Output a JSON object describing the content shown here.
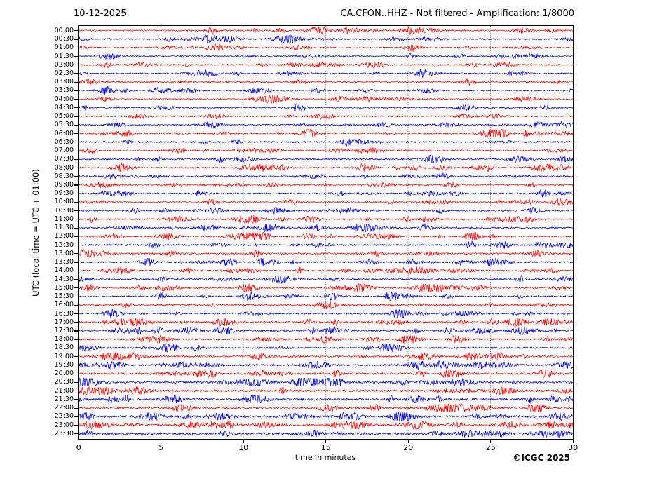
{
  "header": {
    "date": "10-12-2025",
    "station_title": "CA.CFON..HHZ - Not filtered - Amplification: 1/8000"
  },
  "footer": {
    "xlabel": "time in minutes",
    "copyright": "©ICGC 2025"
  },
  "chart_data": {
    "type": "line",
    "subtype": "helicorder-seismogram",
    "title": "CA.CFON..HHZ - Not filtered - Amplification: 1/8000",
    "date": "10-12-2025",
    "station": "CA.CFON..HHZ",
    "filter": "Not filtered",
    "amplification": "1/8000",
    "xlabel": "time in minutes",
    "ylabel": "UTC (local time = UTC + 01:00)",
    "xlim": [
      0,
      30
    ],
    "xticks": [
      0,
      5,
      10,
      15,
      20,
      25,
      30
    ],
    "gridline_xticks": [
      5,
      10,
      15,
      20,
      25
    ],
    "grid_style": "vertical dotted gray lines at 5-minute intervals",
    "minutes_per_row": 30,
    "legend_position": "none",
    "trace_colors": {
      "on_the_hour": "#ff0000",
      "on_the_half_hour": "#0000dd"
    },
    "noise_seed": 20251210,
    "description": "24-hour helicorder: 48 alternating red/blue 30-minute traces of continuous background seismic noise with small spindle-shaped bursts; amplitude increases during evening hours (20:00-23:30).",
    "rows": [
      {
        "label": "00:00",
        "color": "#ff0000",
        "amp": 0.9
      },
      {
        "label": "00:30",
        "color": "#0000dd",
        "amp": 0.9
      },
      {
        "label": "01:00",
        "color": "#ff0000",
        "amp": 0.9
      },
      {
        "label": "01:30",
        "color": "#0000dd",
        "amp": 0.85
      },
      {
        "label": "02:00",
        "color": "#ff0000",
        "amp": 0.9
      },
      {
        "label": "02:30",
        "color": "#0000dd",
        "amp": 0.9
      },
      {
        "label": "03:00",
        "color": "#ff0000",
        "amp": 0.9
      },
      {
        "label": "03:30",
        "color": "#0000dd",
        "amp": 0.9
      },
      {
        "label": "04:00",
        "color": "#ff0000",
        "amp": 0.9
      },
      {
        "label": "04:30",
        "color": "#0000dd",
        "amp": 0.85
      },
      {
        "label": "05:00",
        "color": "#ff0000",
        "amp": 0.85
      },
      {
        "label": "05:30",
        "color": "#0000dd",
        "amp": 0.9
      },
      {
        "label": "06:00",
        "color": "#ff0000",
        "amp": 1.0
      },
      {
        "label": "06:30",
        "color": "#0000dd",
        "amp": 1.0
      },
      {
        "label": "07:00",
        "color": "#ff0000",
        "amp": 1.0
      },
      {
        "label": "07:30",
        "color": "#0000dd",
        "amp": 1.0
      },
      {
        "label": "08:00",
        "color": "#ff0000",
        "amp": 1.0
      },
      {
        "label": "08:30",
        "color": "#0000dd",
        "amp": 0.95
      },
      {
        "label": "09:00",
        "color": "#ff0000",
        "amp": 1.0
      },
      {
        "label": "09:30",
        "color": "#0000dd",
        "amp": 1.05
      },
      {
        "label": "10:00",
        "color": "#ff0000",
        "amp": 1.0
      },
      {
        "label": "10:30",
        "color": "#0000dd",
        "amp": 1.0
      },
      {
        "label": "11:00",
        "color": "#ff0000",
        "amp": 1.0
      },
      {
        "label": "11:30",
        "color": "#0000dd",
        "amp": 1.05
      },
      {
        "label": "12:00",
        "color": "#ff0000",
        "amp": 1.0
      },
      {
        "label": "12:30",
        "color": "#0000dd",
        "amp": 1.0
      },
      {
        "label": "13:00",
        "color": "#ff0000",
        "amp": 1.05
      },
      {
        "label": "13:30",
        "color": "#0000dd",
        "amp": 1.0
      },
      {
        "label": "14:00",
        "color": "#ff0000",
        "amp": 1.1
      },
      {
        "label": "14:30",
        "color": "#0000dd",
        "amp": 1.1
      },
      {
        "label": "15:00",
        "color": "#ff0000",
        "amp": 1.05
      },
      {
        "label": "15:30",
        "color": "#0000dd",
        "amp": 1.1
      },
      {
        "label": "16:00",
        "color": "#ff0000",
        "amp": 1.05
      },
      {
        "label": "16:30",
        "color": "#0000dd",
        "amp": 1.1
      },
      {
        "label": "17:00",
        "color": "#ff0000",
        "amp": 1.1
      },
      {
        "label": "17:30",
        "color": "#0000dd",
        "amp": 1.15
      },
      {
        "label": "18:00",
        "color": "#ff0000",
        "amp": 1.15
      },
      {
        "label": "18:30",
        "color": "#0000dd",
        "amp": 1.15
      },
      {
        "label": "19:00",
        "color": "#ff0000",
        "amp": 1.2
      },
      {
        "label": "19:30",
        "color": "#0000dd",
        "amp": 1.2
      },
      {
        "label": "20:00",
        "color": "#ff0000",
        "amp": 1.35
      },
      {
        "label": "20:30",
        "color": "#0000dd",
        "amp": 1.6
      },
      {
        "label": "21:00",
        "color": "#ff0000",
        "amp": 1.5
      },
      {
        "label": "21:30",
        "color": "#0000dd",
        "amp": 1.5
      },
      {
        "label": "22:00",
        "color": "#ff0000",
        "amp": 1.5
      },
      {
        "label": "22:30",
        "color": "#0000dd",
        "amp": 1.45
      },
      {
        "label": "23:00",
        "color": "#ff0000",
        "amp": 1.4
      },
      {
        "label": "23:30",
        "color": "#0000dd",
        "amp": 1.6
      }
    ]
  }
}
